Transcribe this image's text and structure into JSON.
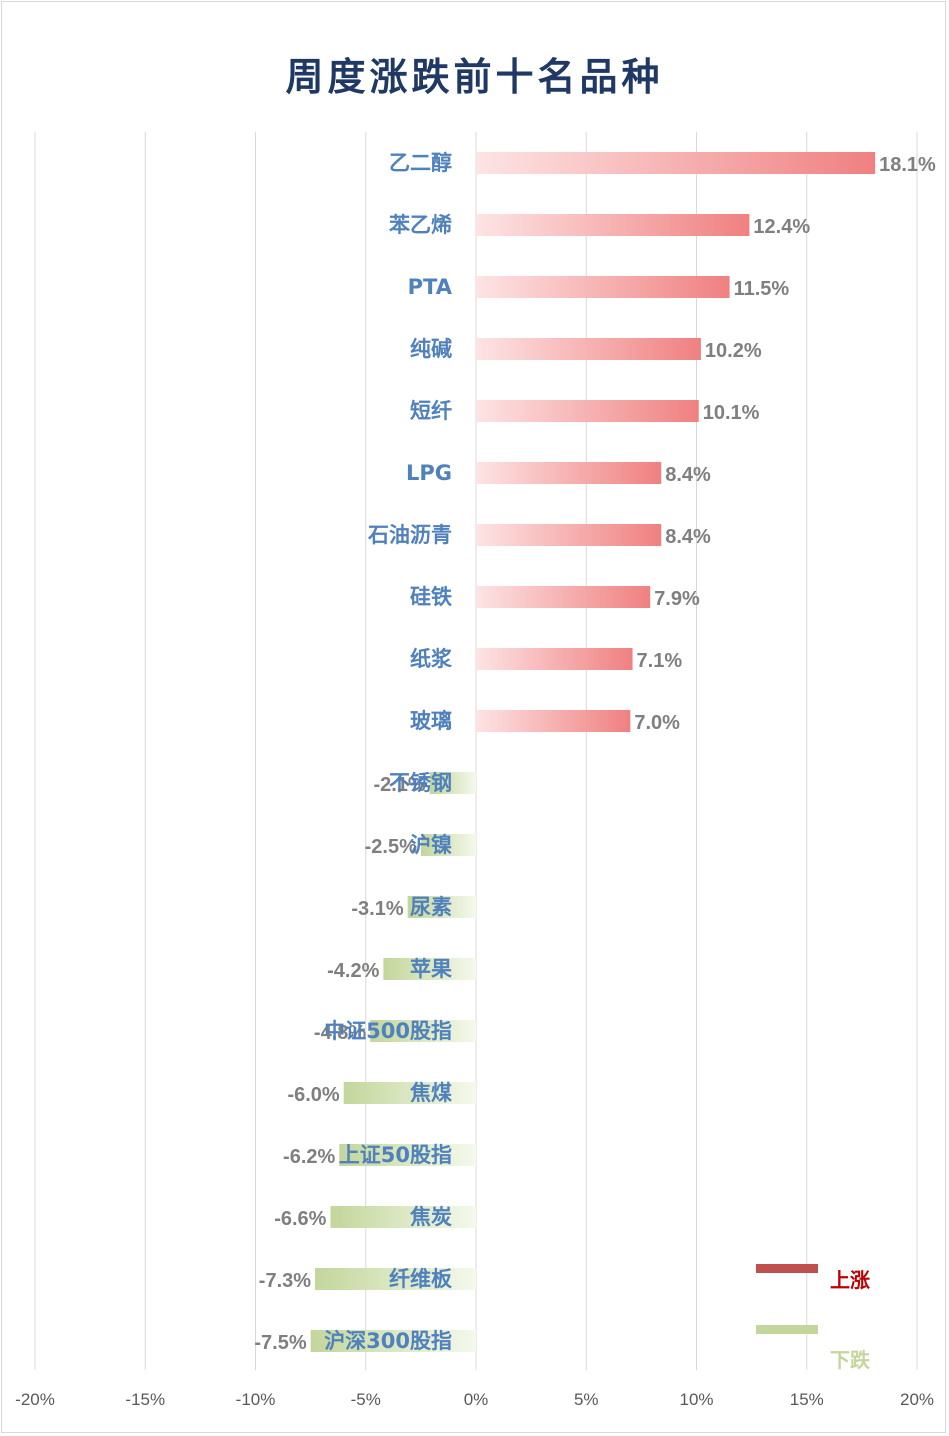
{
  "chart_data": {
    "type": "bar",
    "orientation": "horizontal",
    "title": "周度涨跌前十名品种",
    "categories": [
      "乙二醇",
      "苯乙烯",
      "PTA",
      "纯碱",
      "短纤",
      "LPG",
      "石油沥青",
      "硅铁",
      "纸浆",
      "玻璃",
      "不锈钢",
      "沪镍",
      "尿素",
      "苹果",
      "中证500股指",
      "焦煤",
      "上证50股指",
      "焦炭",
      "纤维板",
      "沪深300股指"
    ],
    "values": [
      18.1,
      12.4,
      11.5,
      10.2,
      10.1,
      8.4,
      8.4,
      7.9,
      7.1,
      7.0,
      -2.1,
      -2.5,
      -3.1,
      -4.2,
      -4.8,
      -6.0,
      -6.2,
      -6.6,
      -7.3,
      -7.5
    ],
    "value_labels": [
      "18.1%",
      "12.4%",
      "11.5%",
      "10.2%",
      "10.1%",
      "8.4%",
      "8.4%",
      "7.9%",
      "7.1%",
      "7.0%",
      "-2.1%",
      "-2.5%",
      "-3.1%",
      "-4.2%",
      "-4.8%",
      "-6.0%",
      "-6.2%",
      "-6.6%",
      "-7.3%",
      "-7.5%"
    ],
    "xlim": [
      -20,
      20
    ],
    "x_ticks": [
      -20,
      -15,
      -10,
      -5,
      0,
      5,
      10,
      15,
      20
    ],
    "x_tick_labels": [
      "-20%",
      "-15%",
      "-10%",
      "-5%",
      "0%",
      "5%",
      "10%",
      "15%",
      "20%"
    ],
    "grid": "vertical",
    "legend": {
      "position": "bottom-right",
      "items": [
        {
          "label": "上涨",
          "color": "#c0504d"
        },
        {
          "label": "下跌",
          "color": "#c3d69b"
        }
      ]
    },
    "colors": {
      "up_start": "#fde4e4",
      "up_end": "#f08080",
      "down_start": "#f4f9ec",
      "down_end": "#c3d69b",
      "category_label": "#4f81bd",
      "value_label": "#7f7f7f",
      "title": "#1f3864",
      "up_legend_text": "#c00000",
      "down_legend_text": "#c3d69b"
    }
  }
}
